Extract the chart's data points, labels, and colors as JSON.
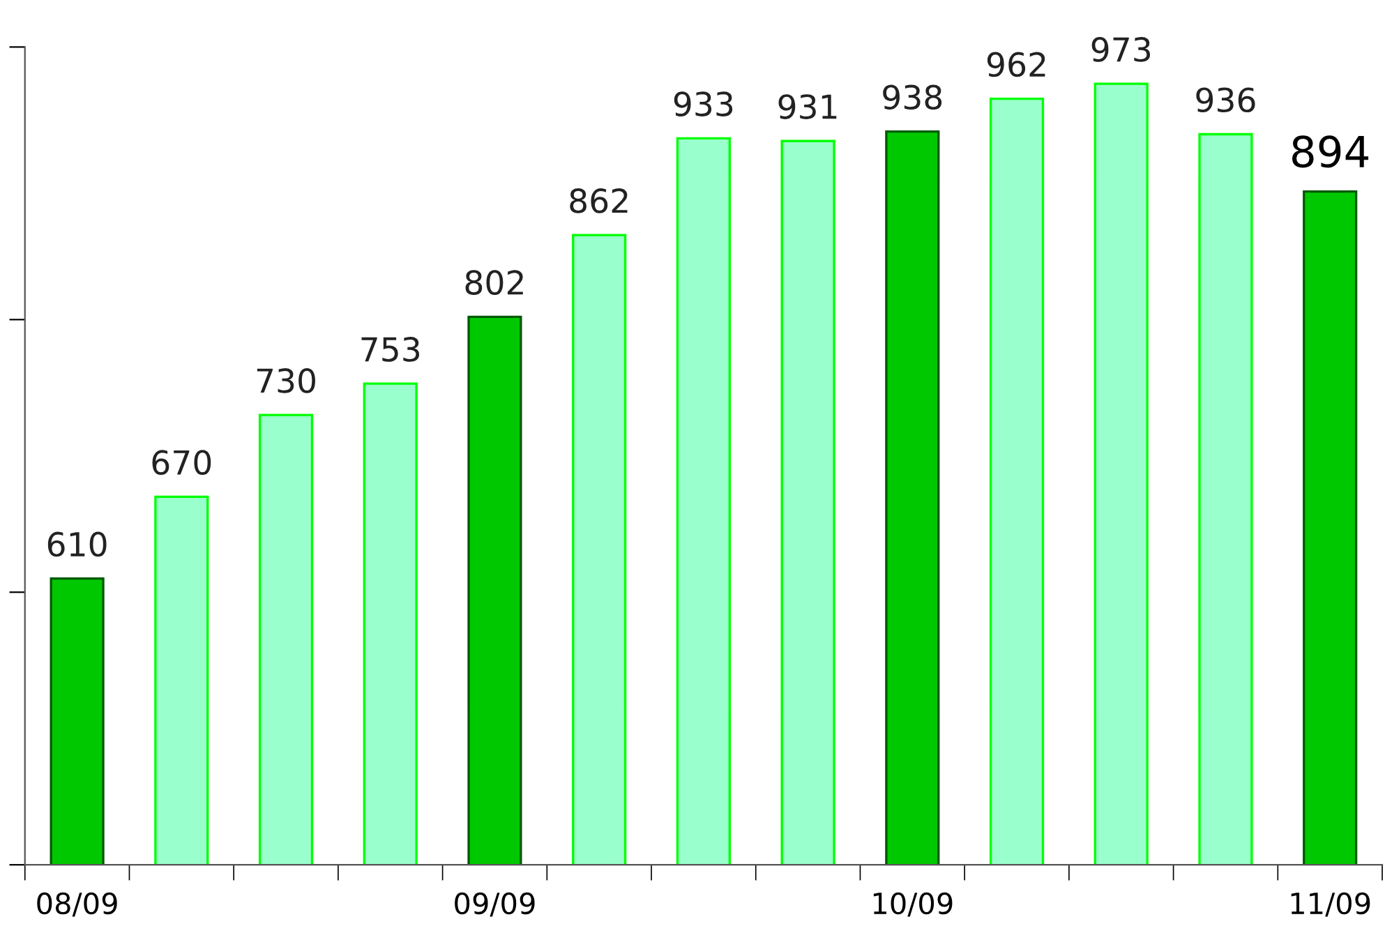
{
  "chart_data": {
    "type": "bar",
    "categories": [
      "08/09",
      null,
      null,
      null,
      "09/09",
      null,
      null,
      null,
      "10/09",
      null,
      null,
      null,
      "11/09"
    ],
    "values": [
      610,
      670,
      730,
      753,
      802,
      862,
      933,
      931,
      938,
      962,
      973,
      936,
      894
    ],
    "colors": [
      "#00c800",
      "#99ffcc",
      "#99ffcc",
      "#99ffcc",
      "#00c800",
      "#99ffcc",
      "#99ffcc",
      "#99ffcc",
      "#00c800",
      "#99ffcc",
      "#99ffcc",
      "#99ffcc",
      "#00c800"
    ],
    "ylim": [
      400,
      1000
    ],
    "yticks": [
      {
        "value": 400,
        "label": null
      },
      {
        "value": 600,
        "label": null
      },
      {
        "value": 800,
        "label": null
      },
      {
        "value": 1000,
        "label": null
      }
    ],
    "data_labels": true,
    "grid": false,
    "legend": false
  }
}
